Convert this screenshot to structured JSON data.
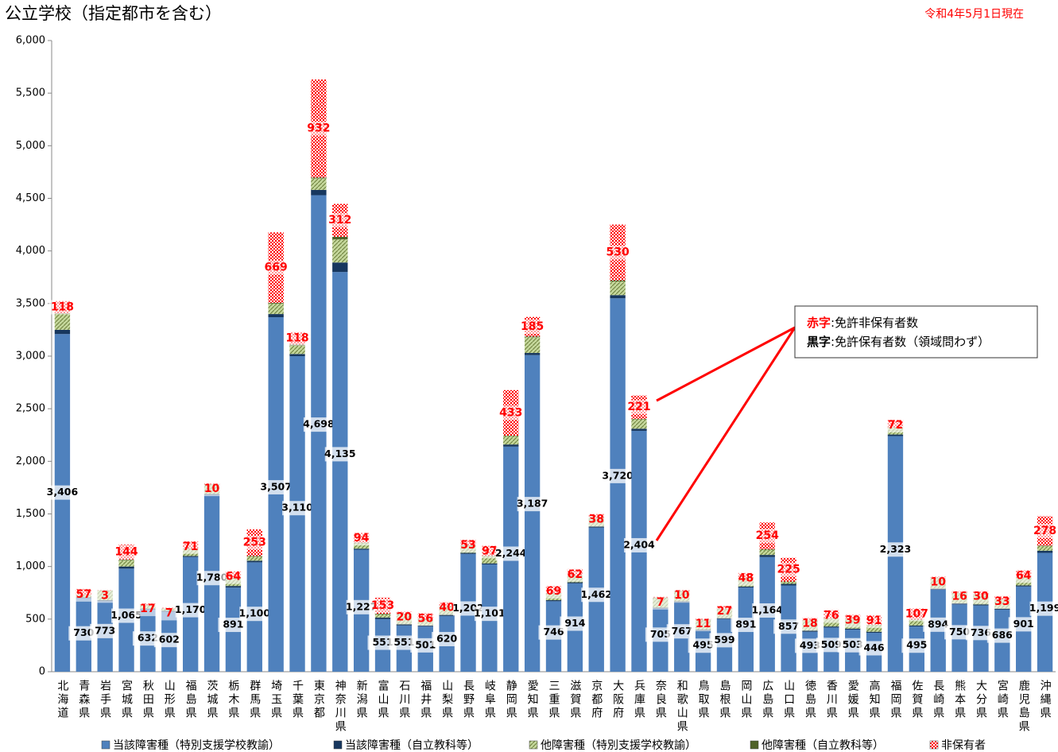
{
  "chart_data": {
    "type": "stacked-bar",
    "title": "公立学校（指定都市を含む）",
    "date_note": "令和4年5月1日現在",
    "categories": [
      "北海道",
      "青森県",
      "岩手県",
      "宮城県",
      "秋田県",
      "山形県",
      "福島県",
      "茨城県",
      "栃木県",
      "群馬県",
      "埼玉県",
      "千葉県",
      "東京都",
      "神奈川県",
      "新潟県",
      "富山県",
      "石川県",
      "福井県",
      "山梨県",
      "長野県",
      "岐阜県",
      "静岡県",
      "愛知県",
      "三重県",
      "滋賀県",
      "京都府",
      "大阪府",
      "兵庫県",
      "奈良県",
      "和歌山県",
      "鳥取県",
      "島根県",
      "岡山県",
      "広島県",
      "山口県",
      "徳島県",
      "香川県",
      "愛媛県",
      "高知県",
      "福岡県",
      "佐賀県",
      "長崎県",
      "熊本県",
      "大分県",
      "宮崎県",
      "鹿児島県",
      "沖縄県"
    ],
    "series": [
      {
        "name": "当該障害種（特別支援学校教諭）",
        "color": "#4f81bd",
        "pattern": "solid",
        "values": [
          3210,
          698,
          670,
          980,
          590,
          570,
          1090,
          1680,
          800,
          1040,
          3370,
          3000,
          4530,
          3800,
          1160,
          500,
          440,
          430,
          530,
          1120,
          1020,
          2140,
          3010,
          670,
          840,
          1370,
          3550,
          2290,
          600,
          660,
          390,
          500,
          800,
          1090,
          820,
          380,
          420,
          400,
          370,
          2240,
          430,
          780,
          640,
          630,
          590,
          810,
          1130
        ]
      },
      {
        "name": "当該障害種（自立教科等）",
        "color": "#17375e",
        "pattern": "solid",
        "values": [
          40,
          10,
          10,
          20,
          10,
          10,
          10,
          10,
          15,
          15,
          30,
          20,
          50,
          90,
          10,
          15,
          10,
          10,
          10,
          10,
          10,
          20,
          20,
          10,
          10,
          10,
          30,
          20,
          10,
          10,
          10,
          10,
          10,
          20,
          15,
          10,
          10,
          10,
          10,
          15,
          10,
          10,
          10,
          10,
          10,
          10,
          20
        ]
      },
      {
        "name": "他障害種（特別支援学校教諭）",
        "color": "#c4d79b",
        "pattern": "hatch",
        "values": [
          150,
          20,
          90,
          60,
          30,
          20,
          65,
          85,
          70,
          40,
          100,
          80,
          110,
          220,
          52,
          30,
          95,
          55,
          75,
          67,
          66,
          80,
          150,
          60,
          60,
          78,
          130,
          90,
          90,
          92,
          90,
          85,
          77,
          50,
          18,
          100,
          75,
          90,
          63,
          65,
          52,
          100,
          96,
          92,
          82,
          77,
          45
        ]
      },
      {
        "name": "他障害種（自立教科等）",
        "color": "#4f6228",
        "pattern": "solid",
        "values": [
          6,
          2,
          3,
          5,
          2,
          2,
          5,
          5,
          6,
          5,
          7,
          10,
          8,
          25,
          5,
          6,
          6,
          6,
          5,
          5,
          5,
          4,
          7,
          6,
          4,
          4,
          10,
          4,
          5,
          5,
          5,
          4,
          4,
          4,
          4,
          3,
          4,
          3,
          3,
          3,
          3,
          4,
          4,
          4,
          4,
          4,
          4
        ]
      },
      {
        "name": "非保有者",
        "color": "#ff0000",
        "pattern": "checker",
        "values": [
          118,
          57,
          3,
          144,
          17,
          7,
          71,
          10,
          64,
          253,
          669,
          118,
          932,
          312,
          94,
          153,
          20,
          56,
          40,
          53,
          97,
          433,
          185,
          69,
          62,
          38,
          530,
          221,
          7,
          10,
          11,
          27,
          48,
          254,
          225,
          18,
          76,
          39,
          91,
          72,
          107,
          10,
          16,
          30,
          33,
          64,
          278
        ]
      }
    ],
    "licensed_totals": {
      "values": [
        3406,
        730,
        773,
        1065,
        632,
        602,
        1170,
        1780,
        891,
        1100,
        3507,
        3110,
        4698,
        4135,
        1227,
        551,
        551,
        501,
        620,
        1202,
        1101,
        2244,
        3187,
        746,
        914,
        1462,
        3720,
        2404,
        705,
        767,
        495,
        599,
        891,
        1164,
        857,
        493,
        509,
        503,
        446,
        2323,
        495,
        894,
        750,
        736,
        686,
        901,
        1199
      ],
      "value_labels": [
        "3,406",
        "730",
        "773",
        "1,065",
        "632",
        "602",
        "1,170",
        "1,780",
        "891",
        "1,100",
        "3,507",
        "3,110",
        "4,698",
        "4,135",
        "1,227",
        "551",
        "551",
        "501",
        "620",
        "1,202",
        "1,101",
        "2,244",
        "3,187",
        "746",
        "914",
        "1,462",
        "3,720",
        "2,404",
        "705",
        "767",
        "495",
        "599",
        "891",
        "1,164",
        "857",
        "493",
        "509",
        "503",
        "446",
        "2,323",
        "495",
        "894",
        "750",
        "736",
        "686",
        "901",
        "1,199"
      ]
    },
    "annotation": {
      "red_key": "赤字",
      "red_text": ":免許非保有者数",
      "black_key": "黒字",
      "black_text": ":免許保有者数（領域問わず）"
    },
    "ylim": [
      0,
      6000
    ],
    "yticks": [
      0,
      500,
      {
        "value": 1000,
        "label": "1,000"
      },
      {
        "value": 1500,
        "label": "1,500"
      },
      {
        "value": 2000,
        "label": "2,000"
      },
      {
        "value": 2500,
        "label": "2,500"
      },
      {
        "value": 3000,
        "label": "3,000"
      },
      {
        "value": 3500,
        "label": "3,500"
      },
      {
        "value": 4000,
        "label": "4,000"
      },
      {
        "value": 4500,
        "label": "4,500"
      },
      {
        "value": 5000,
        "label": "5,000"
      },
      {
        "value": 5500,
        "label": "5,500"
      },
      {
        "value": 6000,
        "label": "6,000"
      }
    ],
    "grid": false,
    "legend": "bottom"
  }
}
